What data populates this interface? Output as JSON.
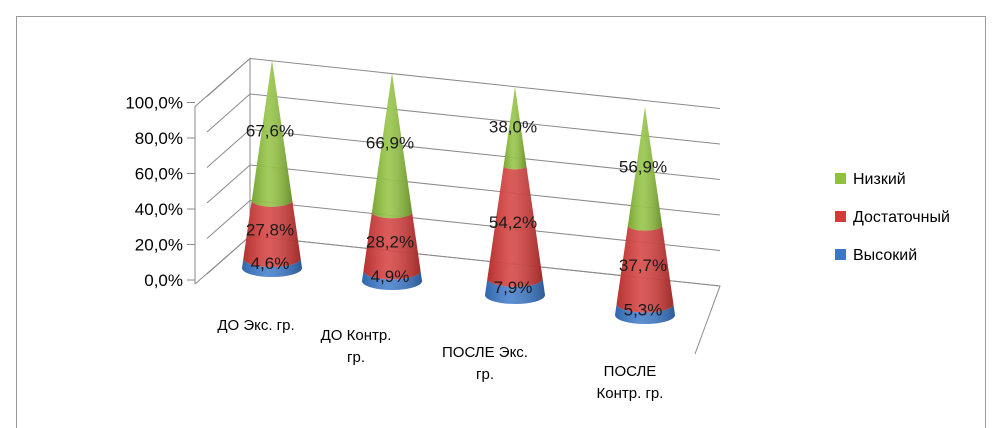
{
  "chart_data": {
    "type": "bar",
    "subtype": "3d-cone-stacked-percent",
    "title": "",
    "xlabel": "",
    "ylabel": "",
    "ylim": [
      0,
      100
    ],
    "yticks": [
      "0,0%",
      "20,0%",
      "40,0%",
      "60,0%",
      "80,0%",
      "100,0%"
    ],
    "categories": [
      [
        "ДО Экс. гр."
      ],
      [
        "ДО Контр.",
        "гр."
      ],
      [
        "ПОСЛЕ Экс.",
        "гр."
      ],
      [
        "ПОСЛЕ",
        "Контр. гр."
      ]
    ],
    "series": [
      {
        "name": "Высокий",
        "color": "#3a78c8",
        "values": [
          4.6,
          4.9,
          7.9,
          5.3
        ],
        "labels": [
          "4,6%",
          "4,9%",
          "7,9%",
          "5,3%"
        ]
      },
      {
        "name": "Достаточный",
        "color": "#d33a38",
        "values": [
          27.8,
          28.2,
          54.2,
          37.7
        ],
        "labels": [
          "27,8%",
          "28,2%",
          "54,2%",
          "37,7%"
        ]
      },
      {
        "name": "Низкий",
        "color": "#8fc13c",
        "values": [
          67.6,
          66.9,
          38.0,
          56.9
        ],
        "labels": [
          "67,6%",
          "66,9%",
          "38,0%",
          "56,9%"
        ]
      }
    ],
    "legend": {
      "position": "right",
      "order": [
        "Низкий",
        "Достаточный",
        "Высокий"
      ]
    },
    "grid": true
  }
}
